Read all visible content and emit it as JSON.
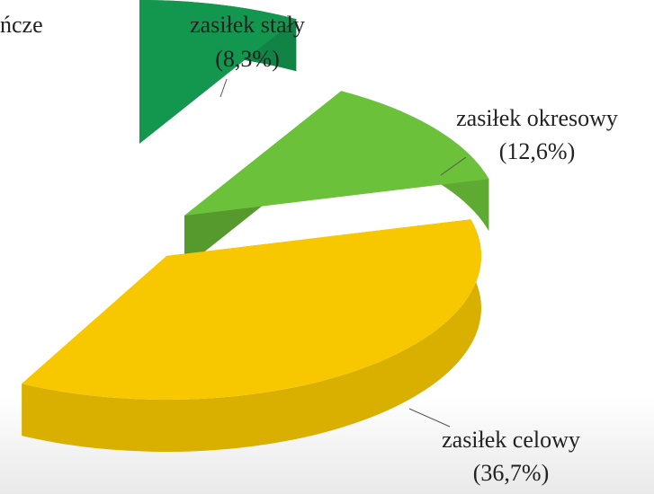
{
  "chart_data": {
    "type": "pie",
    "categories": [
      "zasiłek stały",
      "zasiłek okresowy",
      "zasiłek celowy"
    ],
    "values": [
      8.3,
      12.6,
      36.7
    ],
    "value_labels": [
      "(8,3%)",
      "(12,6%)",
      "(36,7%)"
    ],
    "colors": [
      "#13964e",
      "#6cc13a",
      "#f7c800"
    ],
    "annotations": [
      {
        "text": "ńcze"
      }
    ]
  }
}
